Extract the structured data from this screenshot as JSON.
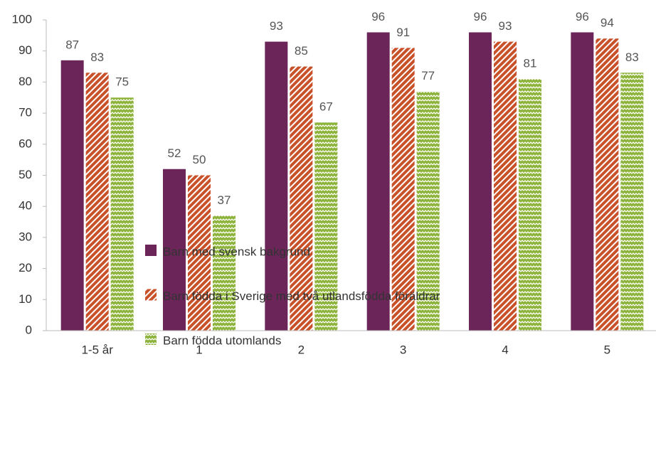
{
  "chart_data": {
    "type": "bar",
    "categories": [
      "1-5 år",
      "1",
      "2",
      "3",
      "4",
      "5"
    ],
    "series": [
      {
        "name": "Barn med svensk bakgrund",
        "color": "#6b2558",
        "pattern": "solid",
        "values": [
          87,
          52,
          93,
          96,
          96,
          96
        ]
      },
      {
        "name": "Barn födda i Sverige med två utlandsfödda föräldrar",
        "color": "#c8512a",
        "pattern": "diagonal",
        "values": [
          83,
          50,
          85,
          91,
          93,
          94
        ]
      },
      {
        "name": "Barn födda utomlands",
        "color": "#8db33a",
        "pattern": "zigzag",
        "values": [
          75,
          37,
          67,
          77,
          81,
          83
        ]
      }
    ],
    "ylim": [
      0,
      100
    ],
    "yticks": [
      0,
      10,
      20,
      30,
      40,
      50,
      60,
      70,
      80,
      90,
      100
    ],
    "grid": false,
    "legend": "bottom",
    "data_labels": true
  }
}
